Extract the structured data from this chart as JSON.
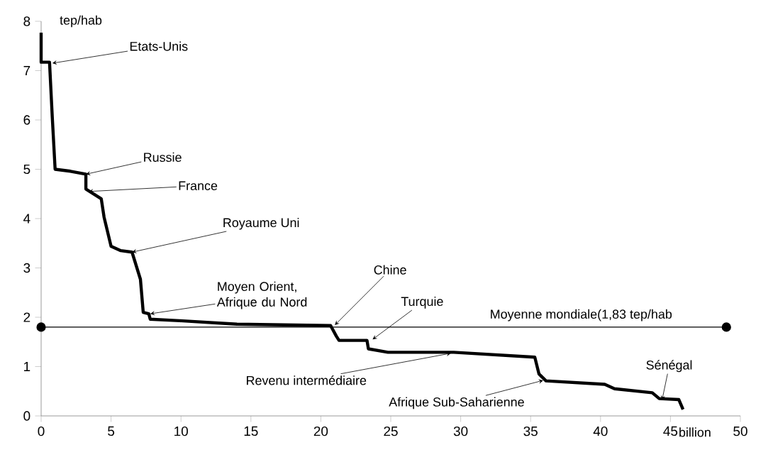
{
  "chart_data": {
    "type": "line",
    "xlabel": "billion",
    "ylabel": "tep/hab",
    "xlim": [
      0,
      50
    ],
    "ylim": [
      0,
      8
    ],
    "xticks": [
      0,
      5,
      10,
      15,
      20,
      25,
      30,
      35,
      40,
      45,
      50
    ],
    "yticks": [
      0,
      1,
      2,
      3,
      4,
      5,
      6,
      7,
      8
    ],
    "series": [
      {
        "color": "#000000",
        "marker": "none",
        "x": [
          0,
          0,
          0.6,
          0.8,
          1.0,
          2.1,
          3.2,
          3.2,
          4.3,
          4.5,
          5.0,
          5.7,
          6.5,
          7.1,
          7.3,
          7.7,
          7.8,
          9.9,
          14,
          20.7,
          21.1,
          21.3,
          23.3,
          23.4,
          24.8,
          29.5,
          35.3,
          35.6,
          36.1,
          40.3,
          41,
          43.7,
          44.2,
          45.6,
          45.9
        ],
        "values": [
          7.77,
          7.17,
          7.17,
          6.04,
          5.0,
          4.96,
          4.9,
          4.6,
          4.4,
          4.03,
          3.44,
          3.35,
          3.32,
          2.77,
          2.1,
          2.07,
          1.96,
          1.93,
          1.86,
          1.83,
          1.62,
          1.53,
          1.53,
          1.36,
          1.29,
          1.29,
          1.19,
          0.85,
          0.71,
          0.64,
          0.55,
          0.47,
          0.35,
          0.33,
          0.13
        ]
      },
      {
        "name": "Moyenne mondiale(1,83 tep/hab",
        "color": "#000000",
        "marker": "circle",
        "x": [
          0,
          49
        ],
        "values": [
          1.8,
          1.8
        ]
      }
    ],
    "annotations": [
      {
        "text": "Etats-Unis",
        "x": 0.8,
        "y": 7.15
      },
      {
        "text": "Russie",
        "x": 3.2,
        "y": 4.9
      },
      {
        "text": "France",
        "x": 3.4,
        "y": 4.55
      },
      {
        "text": "Royaume Uni",
        "x": 6.5,
        "y": 3.32
      },
      {
        "text": "Moyen Orient, Afrique du Nord",
        "x": 7.8,
        "y": 2.07
      },
      {
        "text": "Chine",
        "x": 21,
        "y": 1.84
      },
      {
        "text": "Turquie",
        "x": 23.7,
        "y": 1.55
      },
      {
        "text": "Revenu intermédiaire",
        "x": 29.3,
        "y": 1.27
      },
      {
        "text": "Afrique Sub-Saharienne",
        "x": 35.9,
        "y": 0.72
      },
      {
        "text": "Sénégal",
        "x": 44.4,
        "y": 0.32
      }
    ]
  }
}
